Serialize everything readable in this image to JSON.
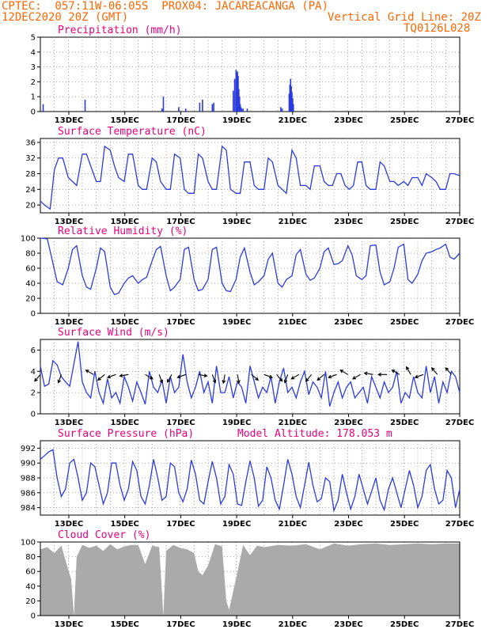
{
  "header": {
    "line1": "CPTEC:  057:11W-06:05S  PROX04: JACAREACANGA (PA)",
    "line2_left": "12DEC2020 20Z (GMT)",
    "line2_right": "Vertical Grid Line: 20Z",
    "line3_right": "TQ0126L028"
  },
  "colors": {
    "header": "#ff6600",
    "title": "#e8007a",
    "series": "#2b3bdc",
    "cloud": "#aaaaaa",
    "grid": "#999999"
  },
  "x_tick_labels": [
    "13DEC",
    "15DEC",
    "17DEC",
    "19DEC",
    "21DEC",
    "23DEC",
    "25DEC",
    "27DEC"
  ],
  "chart_data": [
    {
      "type": "bar",
      "title": "Precipitation (mm/h)",
      "ylim": [
        0,
        5
      ],
      "yticks": [
        0,
        1,
        2,
        3,
        4,
        5
      ],
      "x_unit": "days since 12DEC2020 20Z",
      "x": [
        0.2,
        3.2,
        8.7,
        8.8,
        9.9,
        10.4,
        11.4,
        11.6,
        12.3,
        12.4,
        13.8,
        13.9,
        14.0,
        14.05,
        14.1,
        14.15,
        14.2,
        14.25,
        14.3,
        14.35,
        14.4,
        14.5,
        14.8,
        17.2,
        17.3,
        17.8,
        17.85,
        17.9,
        17.95,
        18.0,
        18.05,
        18.1
      ],
      "values": [
        0.5,
        0.8,
        0.2,
        1.0,
        0.3,
        0.2,
        0.6,
        0.8,
        0.5,
        0.6,
        1.4,
        2.2,
        2.8,
        2.6,
        2.7,
        2.4,
        1.5,
        1.0,
        0.5,
        0.3,
        0.2,
        0.2,
        0.2,
        0.3,
        0.2,
        1.2,
        1.8,
        2.2,
        1.7,
        1.3,
        0.9,
        0.5
      ],
      "grid": true
    },
    {
      "type": "line",
      "title": "Surface Temperature (nC)",
      "ylim": [
        18,
        37
      ],
      "yticks": [
        20,
        24,
        28,
        32,
        36
      ],
      "x": [
        0,
        0.3,
        0.5,
        0.7,
        1.0,
        1.3,
        1.6,
        2.0,
        2.3,
        2.6,
        3.0,
        3.3,
        3.6,
        4.0,
        4.3,
        4.6,
        5.0,
        5.3,
        5.6,
        6.0,
        6.3,
        6.6,
        7.0,
        7.3,
        7.6,
        8.0,
        8.3,
        8.6,
        9.0,
        9.3,
        9.6,
        10.0,
        10.3,
        10.6,
        11.0,
        11.3,
        11.6,
        12.0,
        12.3,
        12.6,
        13.0,
        13.3,
        13.6,
        14.0,
        14.3,
        14.6,
        15.0,
        15.3,
        15.6,
        16.0,
        16.3,
        16.6,
        17.0,
        17.3,
        17.6,
        18.0,
        18.3,
        18.6,
        19.0,
        19.3,
        19.6,
        20.0,
        20.3,
        20.6,
        20.9,
        21.2,
        21.5,
        21.8,
        22.1,
        22.4,
        22.7,
        23.0,
        23.3,
        23.6,
        24.0,
        24.3,
        24.6,
        25.0,
        25.3,
        25.6,
        26.0,
        26.3,
        26.6,
        27.0,
        27.3,
        27.6,
        28.0,
        28.3,
        28.6,
        29.0,
        29.3,
        29.6,
        30.0
      ],
      "values": [
        21,
        20,
        19.5,
        19,
        29,
        32,
        32,
        27,
        26,
        25,
        33,
        33,
        30,
        26,
        26,
        35,
        34,
        30,
        27,
        26,
        33,
        33,
        25,
        24,
        24,
        32,
        31,
        26,
        24,
        24,
        33,
        32,
        24,
        23,
        23,
        33,
        32,
        26,
        24,
        24,
        35,
        34,
        24,
        23,
        23,
        31,
        31,
        25,
        24,
        24,
        32,
        31,
        25,
        24,
        23,
        34,
        32,
        25,
        25,
        24,
        30,
        30,
        26,
        25,
        25,
        28,
        28,
        25,
        24,
        25,
        31,
        31,
        25,
        24,
        24,
        31,
        30,
        26,
        26,
        25,
        26,
        25,
        27,
        27,
        25,
        28,
        27,
        26,
        24,
        24,
        28,
        28,
        27.5
      ],
      "grid": true
    },
    {
      "type": "line",
      "title": "Relative Humidity (%)",
      "ylim": [
        0,
        100
      ],
      "yticks": [
        0,
        20,
        40,
        60,
        80,
        100
      ],
      "x": [
        0,
        0.5,
        0.8,
        1.2,
        1.6,
        2.0,
        2.3,
        2.6,
        3.0,
        3.3,
        3.6,
        4.0,
        4.3,
        4.6,
        5.0,
        5.3,
        5.6,
        6.0,
        6.3,
        6.6,
        7.0,
        7.3,
        7.6,
        8.0,
        8.3,
        8.6,
        9.0,
        9.3,
        9.6,
        10.0,
        10.3,
        10.6,
        11.0,
        11.3,
        11.6,
        12.0,
        12.3,
        12.6,
        13.0,
        13.3,
        13.6,
        14.0,
        14.3,
        14.6,
        15.0,
        15.3,
        15.6,
        16.0,
        16.3,
        16.6,
        17.0,
        17.3,
        17.6,
        18.0,
        18.3,
        18.6,
        19.0,
        19.3,
        19.6,
        20.0,
        20.3,
        20.6,
        21.0,
        21.3,
        21.6,
        22.0,
        22.3,
        22.6,
        23.0,
        23.3,
        23.6,
        24.0,
        24.3,
        24.6,
        25.0,
        25.3,
        25.6,
        26.0,
        26.3,
        26.6,
        27.0,
        27.3,
        27.6,
        28.0,
        28.3,
        28.6,
        29.0,
        29.3,
        29.6,
        30.0
      ],
      "values": [
        100,
        99,
        75,
        42,
        38,
        60,
        85,
        90,
        50,
        35,
        32,
        60,
        87,
        82,
        35,
        25,
        27,
        40,
        47,
        50,
        40,
        45,
        48,
        70,
        85,
        89,
        50,
        30,
        35,
        45,
        85,
        88,
        45,
        30,
        32,
        45,
        85,
        88,
        40,
        30,
        29,
        45,
        75,
        87,
        55,
        38,
        42,
        50,
        72,
        80,
        40,
        35,
        45,
        50,
        78,
        85,
        52,
        44,
        47,
        60,
        82,
        87,
        65,
        66,
        70,
        90,
        78,
        50,
        45,
        50,
        90,
        91,
        55,
        38,
        42,
        60,
        88,
        92,
        45,
        40,
        52,
        70,
        80,
        82,
        85,
        87,
        92,
        75,
        72,
        80
      ],
      "grid": true
    },
    {
      "type": "line",
      "title": "Surface Wind (m/s)",
      "ylim": [
        0,
        7
      ],
      "yticks": [
        0,
        2,
        4,
        6
      ],
      "x": [
        0,
        0.3,
        0.6,
        0.9,
        1.2,
        1.5,
        1.8,
        2.1,
        2.4,
        2.7,
        3.0,
        3.3,
        3.6,
        3.9,
        4.2,
        4.5,
        4.8,
        5.1,
        5.4,
        5.7,
        6.0,
        6.3,
        6.6,
        6.9,
        7.2,
        7.5,
        7.8,
        8.1,
        8.4,
        8.7,
        9.0,
        9.3,
        9.6,
        9.9,
        10.2,
        10.5,
        10.8,
        11.1,
        11.4,
        11.7,
        12.0,
        12.3,
        12.6,
        12.9,
        13.2,
        13.5,
        13.8,
        14.1,
        14.4,
        14.7,
        15.0,
        15.3,
        15.6,
        15.9,
        16.2,
        16.5,
        16.8,
        17.1,
        17.4,
        17.7,
        18.0,
        18.3,
        18.6,
        18.9,
        19.2,
        19.5,
        19.8,
        20.1,
        20.4,
        20.7,
        21.0,
        21.3,
        21.6,
        21.9,
        22.2,
        22.5,
        22.8,
        23.1,
        23.4,
        23.7,
        24.0,
        24.3,
        24.6,
        24.9,
        25.2,
        25.5,
        25.8,
        26.1,
        26.4,
        26.7,
        27.0,
        27.3,
        27.6,
        27.9,
        28.2,
        28.5,
        28.8,
        29.1,
        29.4,
        29.7,
        30.0
      ],
      "values": [
        4.5,
        2.6,
        2.8,
        5.0,
        4.6,
        3.5,
        3.0,
        2.6,
        4.7,
        6.8,
        3.0,
        2.0,
        1.5,
        4.0,
        2.0,
        1.0,
        3.3,
        1.5,
        2.0,
        1.0,
        3.5,
        2.5,
        1.2,
        3.0,
        2.0,
        0.9,
        4.0,
        2.5,
        2.0,
        3.2,
        1.0,
        3.5,
        2.0,
        2.5,
        5.6,
        3.0,
        1.5,
        2.5,
        4.0,
        2.0,
        3.0,
        1.0,
        4.5,
        2.0,
        2.0,
        3.5,
        1.5,
        3.0,
        2.5,
        1.0,
        4.5,
        3.0,
        1.5,
        2.5,
        2.0,
        3.5,
        1.0,
        3.0,
        4.3,
        2.0,
        2.5,
        1.5,
        3.0,
        4.0,
        1.8,
        3.0,
        2.5,
        1.5,
        4.0,
        0.7,
        2.0,
        3.0,
        1.5,
        2.5,
        3.0,
        1.5,
        2.0,
        2.5,
        1.0,
        3.5,
        2.5,
        1.5,
        3.0,
        2.0,
        2.5,
        4.0,
        1.0,
        2.0,
        1.5,
        3.5,
        2.0,
        1.5,
        4.5,
        2.0,
        3.5,
        1.0,
        3.0,
        2.0,
        4.0,
        3.5,
        2.0
      ],
      "arrows_x": [
        0,
        1.5,
        3.8,
        4.6,
        5.4,
        6.3,
        7.5,
        8.5,
        9.4,
        10.4,
        11.3,
        12.3,
        13.2,
        14.1,
        15.1,
        16.0,
        16.9,
        17.7,
        18.5,
        19.4,
        20.3,
        21.2,
        22.0,
        22.9,
        23.8,
        24.8,
        25.7,
        26.5,
        27.4,
        28.4,
        29.4
      ],
      "arrows_dir": [
        220,
        200,
        300,
        230,
        250,
        260,
        120,
        160,
        210,
        250,
        100,
        160,
        190,
        170,
        130,
        110,
        140,
        200,
        240,
        220,
        230,
        250,
        300,
        240,
        280,
        270,
        300,
        330,
        250,
        320,
        320
      ],
      "grid": true
    },
    {
      "type": "line",
      "title": "Surface Pressure (hPa)",
      "subtitle": "Model Altitude: 178.053 m",
      "ylim": [
        983,
        993
      ],
      "yticks": [
        984,
        986,
        988,
        990,
        992
      ],
      "x": [
        0,
        0.3,
        0.6,
        0.9,
        1.2,
        1.5,
        1.8,
        2.1,
        2.4,
        2.7,
        3.0,
        3.3,
        3.6,
        3.9,
        4.2,
        4.5,
        4.8,
        5.1,
        5.4,
        5.7,
        6.0,
        6.3,
        6.6,
        6.9,
        7.2,
        7.5,
        7.8,
        8.1,
        8.4,
        8.7,
        9.0,
        9.3,
        9.6,
        9.9,
        10.2,
        10.5,
        10.8,
        11.1,
        11.4,
        11.7,
        12.0,
        12.3,
        12.6,
        12.9,
        13.2,
        13.5,
        13.8,
        14.1,
        14.4,
        14.7,
        15.0,
        15.3,
        15.6,
        15.9,
        16.2,
        16.5,
        16.8,
        17.1,
        17.4,
        17.7,
        18.0,
        18.3,
        18.6,
        18.9,
        19.2,
        19.5,
        19.8,
        20.1,
        20.4,
        20.7,
        21.0,
        21.3,
        21.6,
        21.9,
        22.2,
        22.5,
        22.8,
        23.1,
        23.4,
        23.7,
        24.0,
        24.3,
        24.6,
        24.9,
        25.2,
        25.5,
        25.8,
        26.1,
        26.4,
        26.7,
        27.0,
        27.3,
        27.6,
        27.9,
        28.2,
        28.5,
        28.8,
        29.1,
        29.4,
        29.7,
        30.0
      ],
      "values": [
        990.5,
        991,
        991.5,
        991.8,
        988,
        985.5,
        986.5,
        990,
        990.5,
        988,
        985,
        986,
        990,
        989.5,
        987,
        984.5,
        986,
        990,
        990,
        987,
        985,
        986.5,
        990.2,
        989,
        985.5,
        984.5,
        987,
        990.5,
        988,
        985,
        985.5,
        990,
        989.5,
        986,
        984.8,
        986.5,
        990.4,
        988.5,
        985,
        984.5,
        987.5,
        990.2,
        988,
        984.5,
        985.5,
        989.8,
        988.5,
        984.5,
        984.3,
        987.5,
        990.3,
        988,
        984.2,
        985,
        989.5,
        988,
        985,
        983.8,
        987,
        990.5,
        988.5,
        985.5,
        984,
        987,
        990.1,
        987,
        984.8,
        985.2,
        988,
        987.5,
        983.6,
        985,
        988.5,
        986,
        983.8,
        985.5,
        988.5,
        986.5,
        984.5,
        986.2,
        988,
        985,
        983.7,
        986.5,
        988,
        986,
        984,
        986.5,
        989,
        987,
        984,
        985.5,
        989,
        989.8,
        986.5,
        984.5,
        985,
        989,
        988,
        984,
        986.5
      ],
      "grid": true
    },
    {
      "type": "area",
      "title": "Cloud Cover (%)",
      "ylim": [
        0,
        100
      ],
      "yticks": [
        0,
        20,
        40,
        60,
        80,
        100
      ],
      "x": [
        0,
        0.5,
        1.0,
        1.5,
        2.0,
        2.2,
        2.4,
        2.6,
        3.0,
        3.5,
        4.0,
        4.5,
        5.0,
        5.5,
        6.0,
        6.5,
        7.0,
        7.5,
        8.0,
        8.5,
        8.8,
        9.0,
        9.5,
        10.0,
        10.5,
        11.0,
        11.3,
        11.6,
        12.0,
        12.5,
        13.0,
        13.3,
        13.5,
        14.0,
        14.5,
        15.0,
        15.5,
        16.0,
        17.0,
        18.0,
        19.0,
        20.0,
        21.0,
        22.0,
        23.0,
        24.0,
        25.0,
        26.0,
        27.0,
        28.0,
        29.0,
        30.0
      ],
      "values": [
        90,
        93,
        85,
        95,
        62,
        50,
        0,
        80,
        96,
        92,
        95,
        88,
        97,
        90,
        94,
        96,
        96,
        70,
        95,
        93,
        0,
        88,
        96,
        92,
        90,
        85,
        60,
        55,
        68,
        97,
        94,
        20,
        8,
        50,
        96,
        82,
        95,
        93,
        96,
        95,
        97,
        90,
        98,
        95,
        97,
        98,
        96,
        97,
        98,
        97,
        98,
        98
      ],
      "grid": true
    }
  ]
}
